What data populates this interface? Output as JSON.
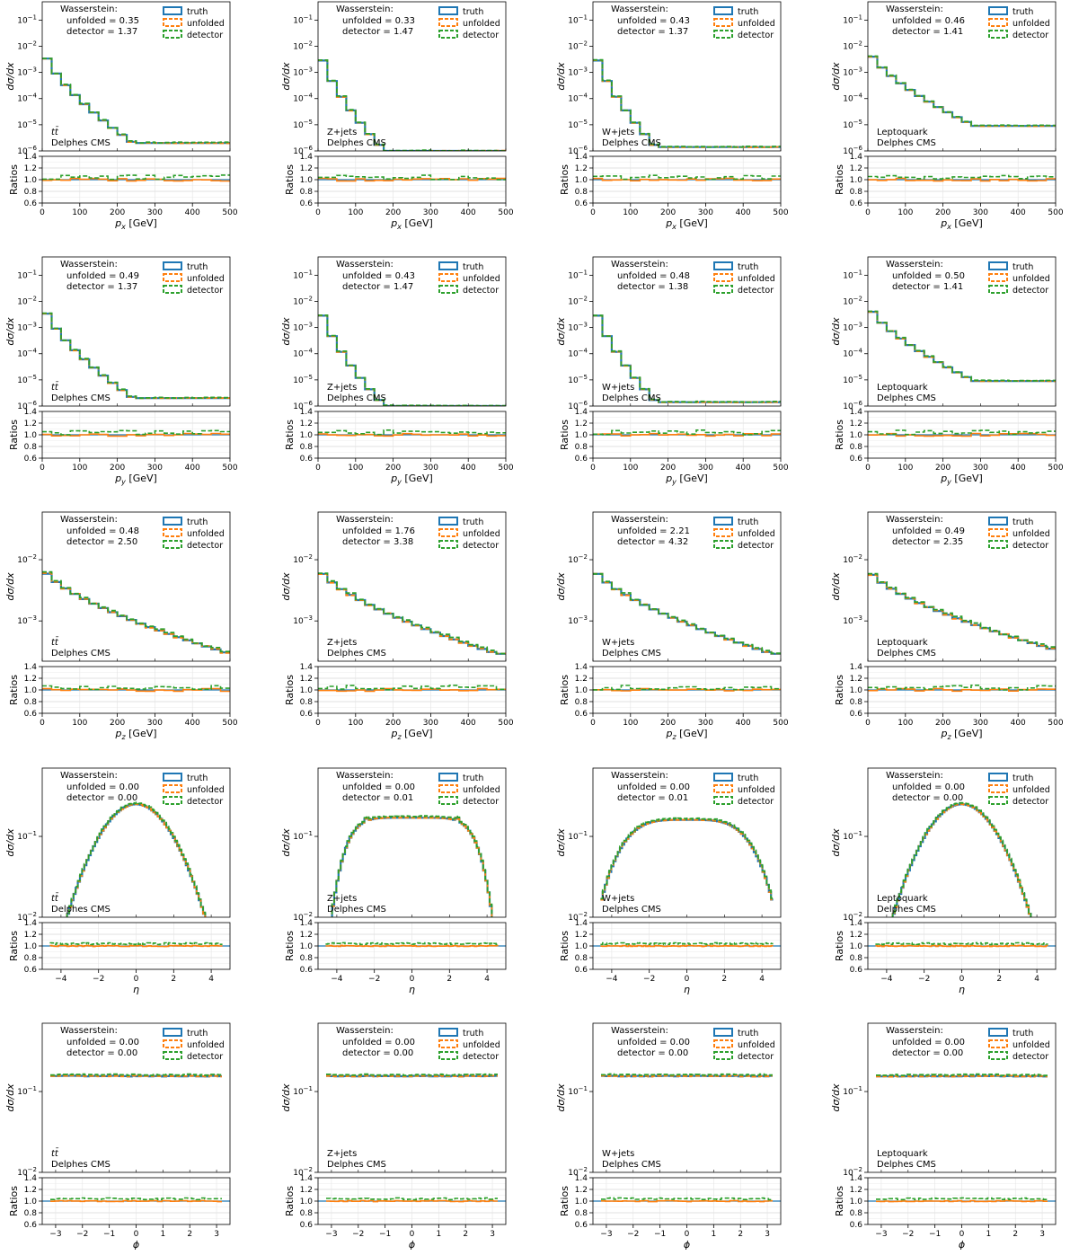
{
  "figure": {
    "legend": [
      "truth",
      "unfolded",
      "detector"
    ],
    "ratio_label": "Ratios",
    "wasserstein_title": "Wasserstein:",
    "unfolded_prefix": "unfolded = ",
    "detector_prefix": "detector = ",
    "colors": {
      "truth": "#1f77b4",
      "unfolded": "#ff7f0e",
      "detector": "#2ca02c"
    }
  },
  "chart_data": [
    {
      "type": "line",
      "row": "px",
      "col": "ttbar",
      "process": "tt̄",
      "detector": "Delphes CMS",
      "xlabel": "p_x [GeV]",
      "ylabel": "dσ/dx",
      "xlim": [
        0,
        500
      ],
      "ylim": [
        1e-06,
        0.5
      ],
      "yscale": "log",
      "ratio_ylim": [
        0.6,
        1.4
      ],
      "wasserstein": {
        "unfolded": "0.35",
        "detector": "1.37"
      },
      "legend_position": "top-right"
    },
    {
      "type": "line",
      "row": "px",
      "col": "zjets",
      "process": "Z+jets",
      "detector": "Delphes CMS",
      "xlabel": "p_x [GeV]",
      "ylabel": "dσ/dx",
      "xlim": [
        0,
        500
      ],
      "ylim": [
        1e-06,
        0.5
      ],
      "yscale": "log",
      "ratio_ylim": [
        0.6,
        1.4
      ],
      "wasserstein": {
        "unfolded": "0.33",
        "detector": "1.47"
      },
      "legend_position": "top-right"
    },
    {
      "type": "line",
      "row": "px",
      "col": "wjets",
      "process": "W+jets",
      "detector": "Delphes CMS",
      "xlabel": "p_x [GeV]",
      "ylabel": "dσ/dx",
      "xlim": [
        0,
        500
      ],
      "ylim": [
        1e-06,
        0.5
      ],
      "yscale": "log",
      "ratio_ylim": [
        0.6,
        1.4
      ],
      "wasserstein": {
        "unfolded": "0.43",
        "detector": "1.37"
      },
      "legend_position": "top-right"
    },
    {
      "type": "line",
      "row": "px",
      "col": "lq",
      "process": "Leptoquark",
      "detector": "Delphes CMS",
      "xlabel": "p_x [GeV]",
      "ylabel": "dσ/dx",
      "xlim": [
        0,
        500
      ],
      "ylim": [
        1e-06,
        0.5
      ],
      "yscale": "log",
      "ratio_ylim": [
        0.6,
        1.4
      ],
      "wasserstein": {
        "unfolded": "0.46",
        "detector": "1.41"
      },
      "legend_position": "top-right"
    },
    {
      "type": "line",
      "row": "py",
      "col": "ttbar",
      "process": "tt̄",
      "detector": "Delphes CMS",
      "xlabel": "p_y [GeV]",
      "ylabel": "dσ/dx",
      "xlim": [
        0,
        500
      ],
      "ylim": [
        1e-06,
        0.5
      ],
      "yscale": "log",
      "ratio_ylim": [
        0.6,
        1.4
      ],
      "wasserstein": {
        "unfolded": "0.49",
        "detector": "1.37"
      },
      "legend_position": "top-right"
    },
    {
      "type": "line",
      "row": "py",
      "col": "zjets",
      "process": "Z+jets",
      "detector": "Delphes CMS",
      "xlabel": "p_y [GeV]",
      "ylabel": "dσ/dx",
      "xlim": [
        0,
        500
      ],
      "ylim": [
        1e-06,
        0.5
      ],
      "yscale": "log",
      "ratio_ylim": [
        0.6,
        1.4
      ],
      "wasserstein": {
        "unfolded": "0.43",
        "detector": "1.47"
      },
      "legend_position": "top-right"
    },
    {
      "type": "line",
      "row": "py",
      "col": "wjets",
      "process": "W+jets",
      "detector": "Delphes CMS",
      "xlabel": "p_y [GeV]",
      "ylabel": "dσ/dx",
      "xlim": [
        0,
        500
      ],
      "ylim": [
        1e-06,
        0.5
      ],
      "yscale": "log",
      "ratio_ylim": [
        0.6,
        1.4
      ],
      "wasserstein": {
        "unfolded": "0.48",
        "detector": "1.38"
      },
      "legend_position": "top-right"
    },
    {
      "type": "line",
      "row": "py",
      "col": "lq",
      "process": "Leptoquark",
      "detector": "Delphes CMS",
      "xlabel": "p_y [GeV]",
      "ylabel": "dσ/dx",
      "xlim": [
        0,
        500
      ],
      "ylim": [
        1e-06,
        0.5
      ],
      "yscale": "log",
      "ratio_ylim": [
        0.6,
        1.4
      ],
      "wasserstein": {
        "unfolded": "0.50",
        "detector": "1.41"
      },
      "legend_position": "top-right"
    },
    {
      "type": "line",
      "row": "pz",
      "col": "ttbar",
      "process": "tt̄",
      "detector": "Delphes CMS",
      "xlabel": "p_z [GeV]",
      "ylabel": "dσ/dx",
      "xlim": [
        0,
        500
      ],
      "ylim": [
        0.00022,
        0.06
      ],
      "yscale": "log",
      "ratio_ylim": [
        0.6,
        1.4
      ],
      "wasserstein": {
        "unfolded": "0.48",
        "detector": "2.50"
      },
      "legend_position": "top-right"
    },
    {
      "type": "line",
      "row": "pz",
      "col": "zjets",
      "process": "Z+jets",
      "detector": "Delphes CMS",
      "xlabel": "p_z [GeV]",
      "ylabel": "dσ/dx",
      "xlim": [
        0,
        500
      ],
      "ylim": [
        0.00022,
        0.06
      ],
      "yscale": "log",
      "ratio_ylim": [
        0.6,
        1.4
      ],
      "wasserstein": {
        "unfolded": "1.76",
        "detector": "3.38"
      },
      "legend_position": "top-right"
    },
    {
      "type": "line",
      "row": "pz",
      "col": "wjets",
      "process": "W+jets",
      "detector": "Delphes CMS",
      "xlabel": "p_z [GeV]",
      "ylabel": "dσ/dx",
      "xlim": [
        0,
        500
      ],
      "ylim": [
        0.00022,
        0.06
      ],
      "yscale": "log",
      "ratio_ylim": [
        0.6,
        1.4
      ],
      "wasserstein": {
        "unfolded": "2.21",
        "detector": "4.32"
      },
      "legend_position": "top-right"
    },
    {
      "type": "line",
      "row": "pz",
      "col": "lq",
      "process": "Leptoquark",
      "detector": "Delphes CMS",
      "xlabel": "p_z [GeV]",
      "ylabel": "dσ/dx",
      "xlim": [
        0,
        500
      ],
      "ylim": [
        0.00022,
        0.06
      ],
      "yscale": "log",
      "ratio_ylim": [
        0.6,
        1.4
      ],
      "wasserstein": {
        "unfolded": "0.49",
        "detector": "2.35"
      },
      "legend_position": "top-right"
    },
    {
      "type": "line",
      "row": "eta",
      "col": "ttbar",
      "process": "tt̄",
      "detector": "Delphes CMS",
      "xlabel": "η",
      "ylabel": "dσ/dx",
      "xlim": [
        -5,
        5
      ],
      "ylim": [
        0.01,
        0.7
      ],
      "yscale": "log",
      "ratio_ylim": [
        0.6,
        1.4
      ],
      "wasserstein": {
        "unfolded": "0.00",
        "detector": "0.00"
      },
      "legend_position": "top-right"
    },
    {
      "type": "line",
      "row": "eta",
      "col": "zjets",
      "process": "Z+jets",
      "detector": "Delphes CMS",
      "xlabel": "η",
      "ylabel": "dσ/dx",
      "xlim": [
        -5,
        5
      ],
      "ylim": [
        0.01,
        0.7
      ],
      "yscale": "log",
      "ratio_ylim": [
        0.6,
        1.4
      ],
      "wasserstein": {
        "unfolded": "0.00",
        "detector": "0.01"
      },
      "legend_position": "top-right"
    },
    {
      "type": "line",
      "row": "eta",
      "col": "wjets",
      "process": "W+jets",
      "detector": "Delphes CMS",
      "xlabel": "η",
      "ylabel": "dσ/dx",
      "xlim": [
        -5,
        5
      ],
      "ylim": [
        0.01,
        0.7
      ],
      "yscale": "log",
      "ratio_ylim": [
        0.6,
        1.4
      ],
      "wasserstein": {
        "unfolded": "0.00",
        "detector": "0.01"
      },
      "legend_position": "top-right"
    },
    {
      "type": "line",
      "row": "eta",
      "col": "lq",
      "process": "Leptoquark",
      "detector": "Delphes CMS",
      "xlabel": "η",
      "ylabel": "dσ/dx",
      "xlim": [
        -5,
        5
      ],
      "ylim": [
        0.01,
        0.7
      ],
      "yscale": "log",
      "ratio_ylim": [
        0.6,
        1.4
      ],
      "wasserstein": {
        "unfolded": "0.00",
        "detector": "0.00"
      },
      "legend_position": "top-right"
    },
    {
      "type": "line",
      "row": "phi",
      "col": "ttbar",
      "process": "tt̄",
      "detector": "Delphes CMS",
      "xlabel": "ϕ",
      "ylabel": "dσ/dx",
      "xlim": [
        -3.5,
        3.5
      ],
      "ylim": [
        0.01,
        0.7
      ],
      "yscale": "log",
      "ratio_ylim": [
        0.6,
        1.4
      ],
      "wasserstein": {
        "unfolded": "0.00",
        "detector": "0.00"
      },
      "legend_position": "top-right"
    },
    {
      "type": "line",
      "row": "phi",
      "col": "zjets",
      "process": "Z+jets",
      "detector": "Delphes CMS",
      "xlabel": "ϕ",
      "ylabel": "dσ/dx",
      "xlim": [
        -3.5,
        3.5
      ],
      "ylim": [
        0.01,
        0.7
      ],
      "yscale": "log",
      "ratio_ylim": [
        0.6,
        1.4
      ],
      "wasserstein": {
        "unfolded": "0.00",
        "detector": "0.00"
      },
      "legend_position": "top-right"
    },
    {
      "type": "line",
      "row": "phi",
      "col": "wjets",
      "process": "W+jets",
      "detector": "Delphes CMS",
      "xlabel": "ϕ",
      "ylabel": "dσ/dx",
      "xlim": [
        -3.5,
        3.5
      ],
      "ylim": [
        0.01,
        0.7
      ],
      "yscale": "log",
      "ratio_ylim": [
        0.6,
        1.4
      ],
      "wasserstein": {
        "unfolded": "0.00",
        "detector": "0.00"
      },
      "legend_position": "top-right"
    },
    {
      "type": "line",
      "row": "phi",
      "col": "lq",
      "process": "Leptoquark",
      "detector": "Delphes CMS",
      "xlabel": "ϕ",
      "ylabel": "dσ/dx",
      "xlim": [
        -3.5,
        3.5
      ],
      "ylim": [
        0.01,
        0.7
      ],
      "yscale": "log",
      "ratio_ylim": [
        0.6,
        1.4
      ],
      "wasserstein": {
        "unfolded": "0.00",
        "detector": "0.00"
      },
      "legend_position": "top-right"
    }
  ]
}
